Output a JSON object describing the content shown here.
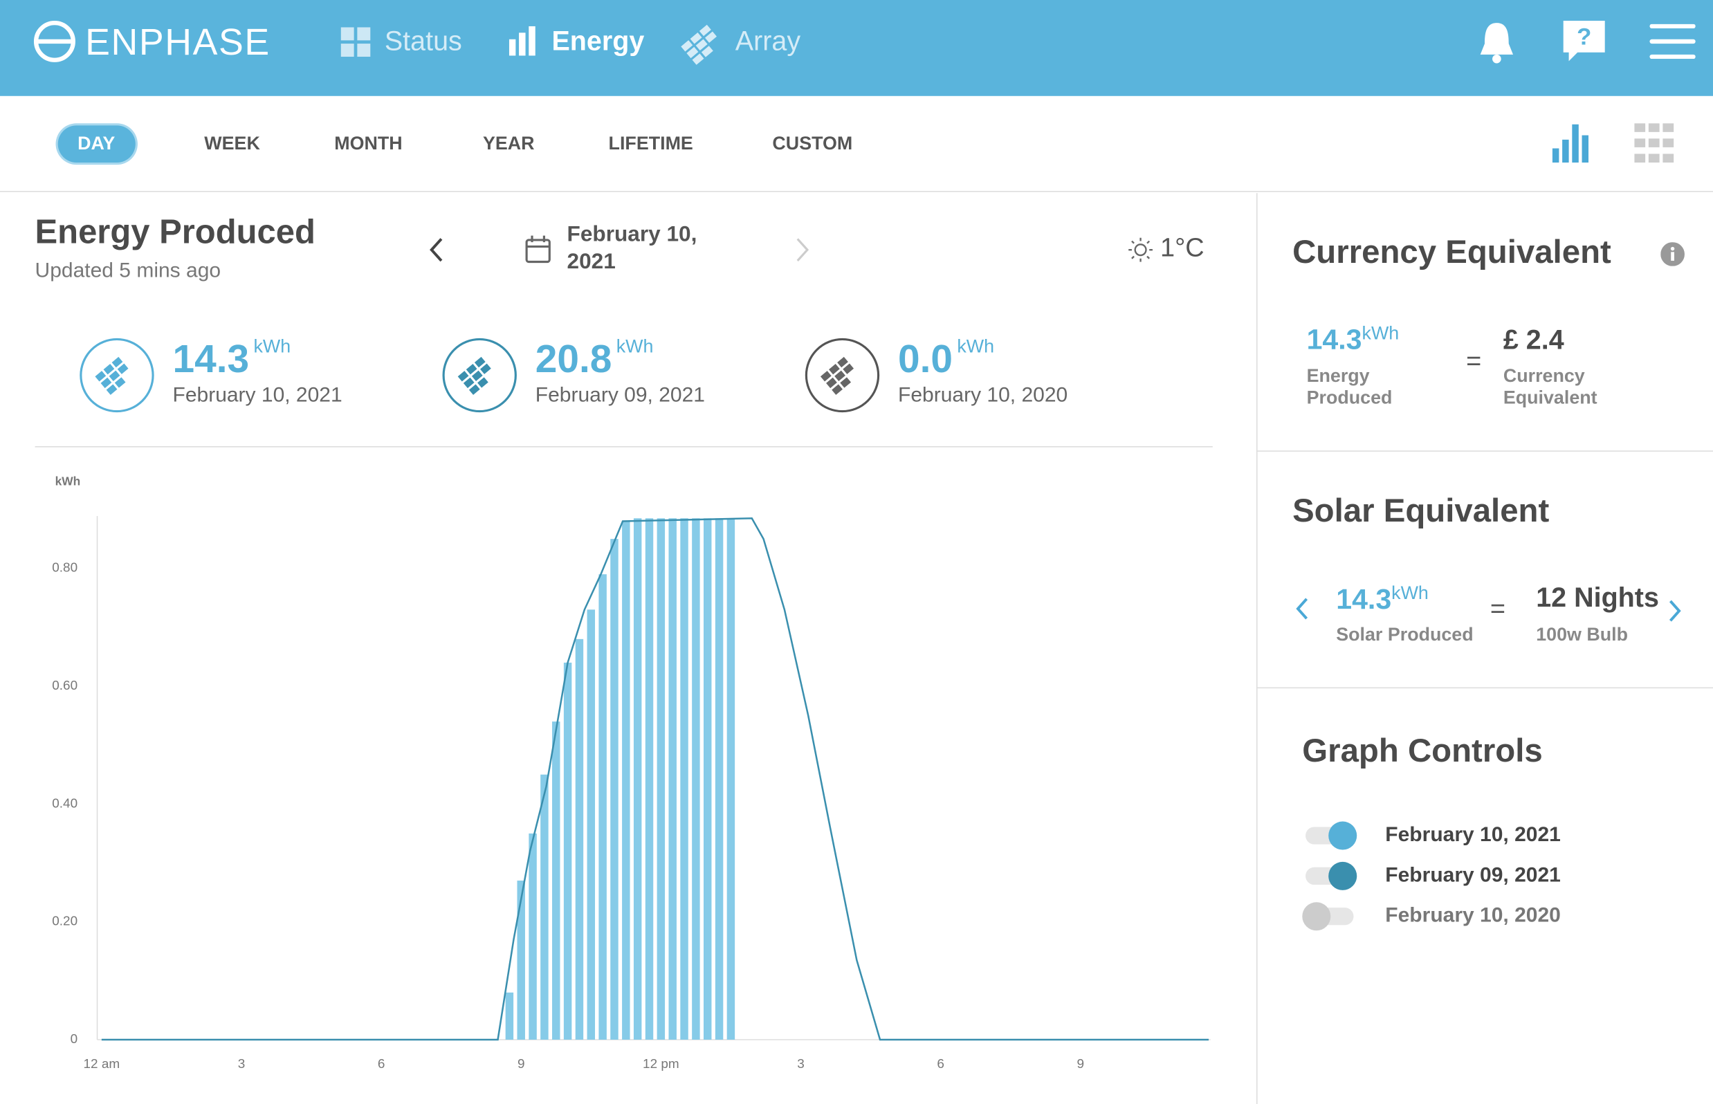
{
  "header": {
    "brand": "ENPHASE",
    "nav": [
      "Status",
      "Energy",
      "Array"
    ]
  },
  "tabs": [
    "DAY",
    "WEEK",
    "MONTH",
    "YEAR",
    "LIFETIME",
    "CUSTOM"
  ],
  "energy": {
    "title": "Energy Produced",
    "updated": "Updated 5 mins ago",
    "date": "February 10, 2021",
    "temperature": "1°C",
    "summary": [
      {
        "value": "14.3",
        "unit": "kWh",
        "date": "February 10, 2021"
      },
      {
        "value": "20.8",
        "unit": "kWh",
        "date": "February 09, 2021"
      },
      {
        "value": "0.0",
        "unit": "kWh",
        "date": "February 10, 2020"
      }
    ]
  },
  "currency": {
    "title": "Currency Equivalent",
    "energy_value": "14.3",
    "energy_unit": "kWh",
    "energy_label": "Energy Produced",
    "equals": "=",
    "amount": "£ 2.4",
    "amount_label": "Currency Equivalent"
  },
  "solar": {
    "title": "Solar Equivalent",
    "value": "14.3",
    "unit": "kWh",
    "label": "Solar Produced",
    "equals": "=",
    "result": "12 Nights",
    "result_label": "100w Bulb"
  },
  "graph_controls": {
    "title": "Graph Controls",
    "inactive": "February 10, 2020"
  },
  "chart_data": {
    "type": "bar",
    "y_label": "kWh",
    "xlim": [
      0,
      24
    ],
    "ylim": [
      0,
      0.9
    ],
    "xticks": [
      {
        "value": 0,
        "label": "12 am"
      },
      3,
      6,
      9,
      {
        "value": 12,
        "label": "12 pm"
      },
      {
        "value": 15,
        "label": "3"
      },
      {
        "value": 18,
        "label": "6"
      },
      {
        "value": 21,
        "label": "9"
      }
    ],
    "yticks": [
      0,
      {
        "value": 0.2,
        "label": "0.20"
      },
      {
        "value": 0.4,
        "label": "0.40"
      },
      {
        "value": 0.6,
        "label": "0.60"
      },
      {
        "value": 0.8,
        "label": "0.80"
      }
    ],
    "series": [
      {
        "name": "February 10, 2021",
        "color": "#86cbe8",
        "x": [
          8.75,
          9,
          9.25,
          9.5,
          9.75,
          10,
          10.25,
          10.5,
          10.75,
          11,
          11.25,
          11.5,
          11.75,
          12,
          12.25,
          12.5,
          12.75,
          13,
          13.25,
          13.5
        ],
        "values": [
          0.08,
          0.27,
          0.35,
          0.45,
          0.54,
          0.64,
          0.68,
          0.73,
          0.79,
          0.85,
          0.88,
          0.885,
          0.885,
          0.885,
          0.885,
          0.885,
          0.885,
          0.885,
          0.885,
          0.885
        ]
      },
      {
        "name": "February 09, 2021",
        "type": "line",
        "color": "#3a8fae",
        "x": [
          0,
          8.5,
          8.84,
          9.19,
          9.54,
          10.0,
          10.36,
          10.71,
          11.18,
          13.95,
          14.2,
          14.65,
          15.16,
          15.63,
          16.2,
          16.7,
          23.75
        ],
        "values": [
          0,
          0,
          0.17,
          0.32,
          0.43,
          0.64,
          0.73,
          0.79,
          0.88,
          0.885,
          0.85,
          0.73,
          0.55,
          0.36,
          0.135,
          0,
          0
        ]
      }
    ]
  }
}
